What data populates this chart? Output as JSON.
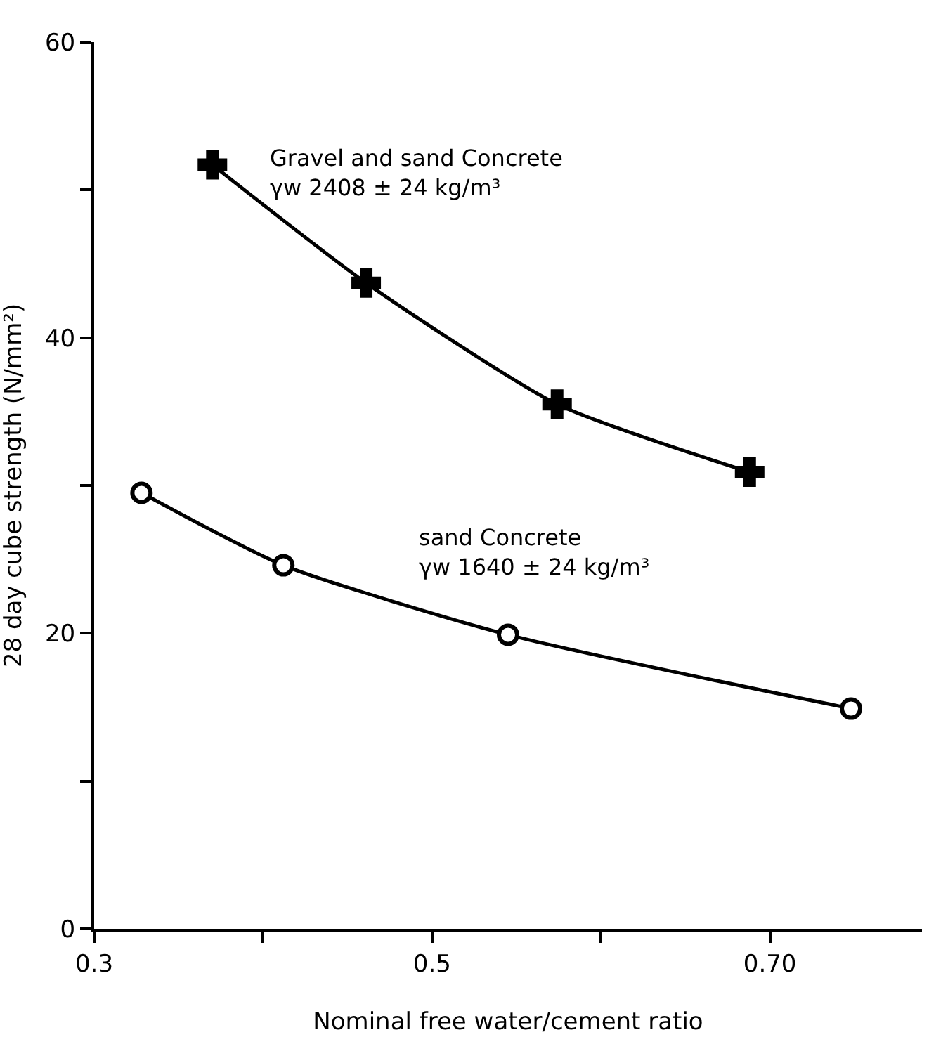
{
  "chart_data": {
    "type": "line",
    "xlabel": "Nominal free water/cement ratio",
    "ylabel": "28 day cube strength (N/mm²)",
    "xlim": [
      0.3,
      0.79
    ],
    "ylim": [
      0,
      60
    ],
    "xticks": [
      0.3,
      {
        "value": 0.4,
        "label": null
      },
      0.5,
      {
        "value": 0.6,
        "label": null
      },
      {
        "value": 0.7,
        "label": "0.70"
      }
    ],
    "yticks": [
      0,
      {
        "value": 10,
        "label": null
      },
      20,
      {
        "value": 30,
        "label": null
      },
      40,
      {
        "value": 50,
        "label": null
      },
      60
    ],
    "legend": false,
    "line_style": "solid",
    "series": [
      {
        "name": "Gravel and sand Concrete",
        "color": "#000000",
        "marker": "cross",
        "x": [
          0.37,
          0.461,
          0.574,
          0.688
        ],
        "values": [
          51.7,
          43.7,
          35.5,
          30.9
        ]
      },
      {
        "name": "sand Concrete",
        "color": "#000000",
        "marker": "circle",
        "x": [
          0.328,
          0.412,
          0.545,
          0.748
        ],
        "values": [
          29.5,
          24.6,
          19.9,
          14.9
        ]
      }
    ],
    "annotations": [
      "γw 2408 ± 24 kg/m³",
      "γw 1640 ± 24 kg/m³"
    ]
  }
}
